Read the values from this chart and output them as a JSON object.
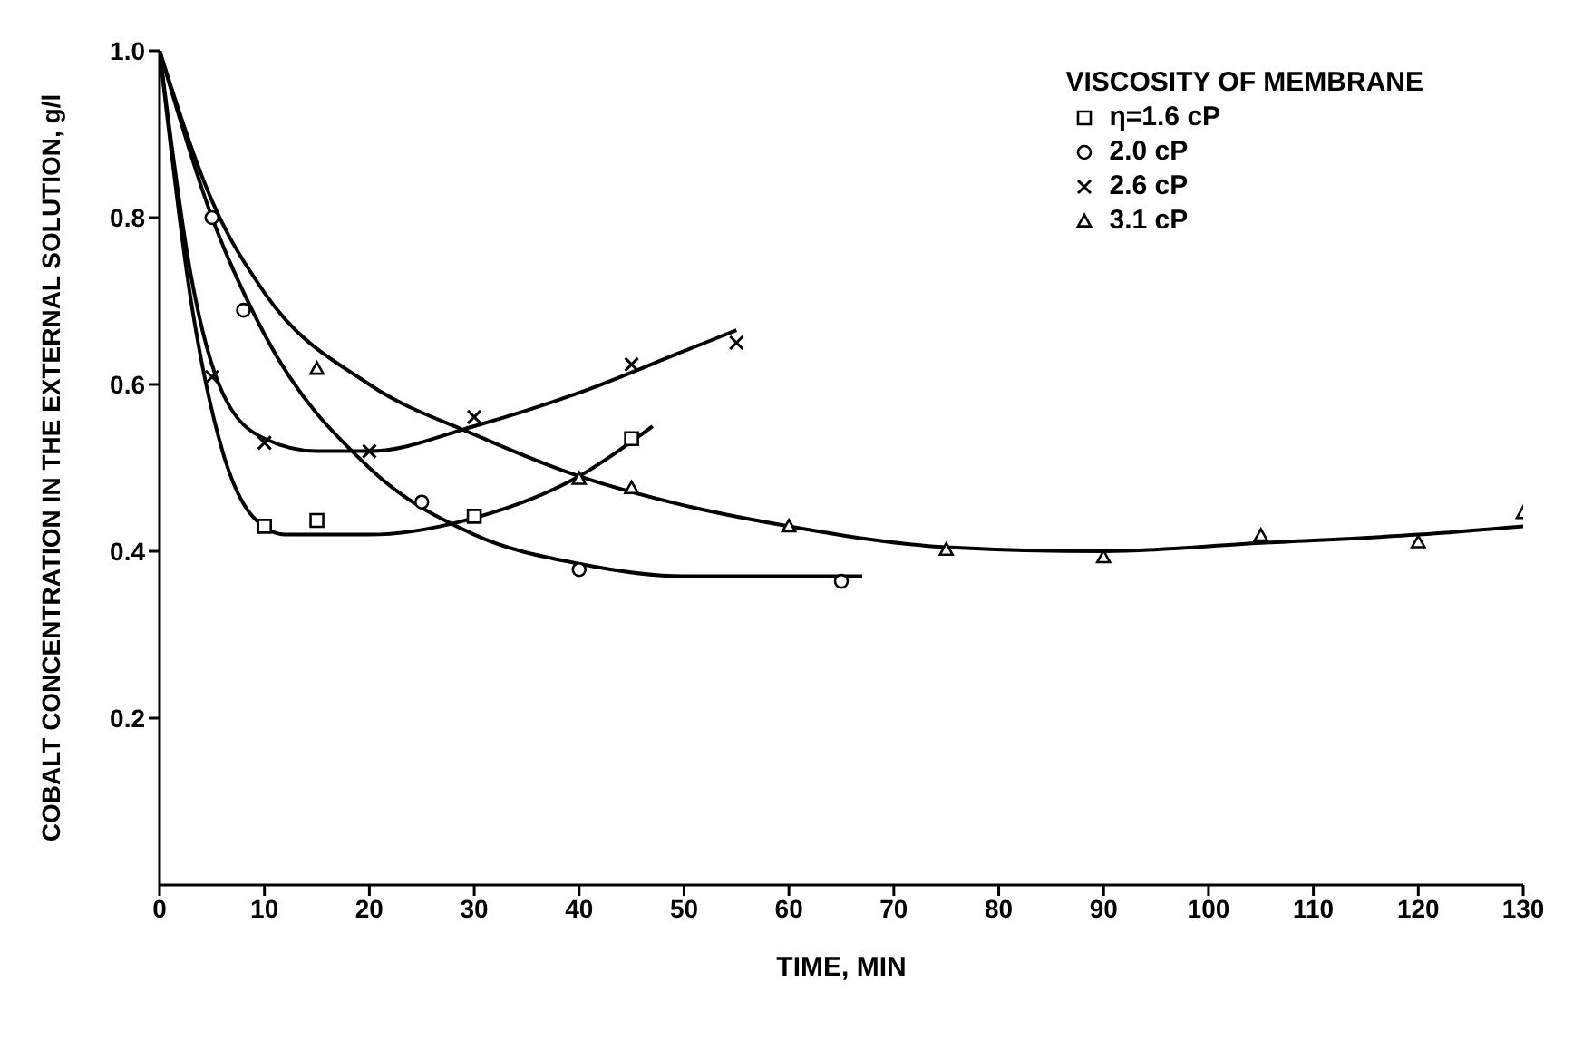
{
  "chart_data": {
    "type": "scatter",
    "xlabel": "TIME, MIN",
    "ylabel": "COBALT CONCENTRATION IN THE EXTERNAL SOLUTION, g/l",
    "legend_title": "VISCOSITY OF MEMBRANE",
    "legend": "top right",
    "xlim": [
      0,
      130
    ],
    "xticks": [
      0,
      10,
      20,
      30,
      40,
      50,
      60,
      70,
      80,
      90,
      100,
      110,
      120,
      130
    ],
    "ylim": [
      0,
      1
    ],
    "yticks": [
      {
        "value": 0.2,
        "label": "0.2"
      },
      {
        "value": 0.4,
        "label": "0.4"
      },
      {
        "value": 0.6,
        "label": "0.6"
      },
      {
        "value": 0.8,
        "label": "0.8"
      },
      {
        "value": 1,
        "label": "1.0"
      }
    ],
    "series": [
      {
        "name": "η=1.6 cP",
        "color": "#000000",
        "marker": "square",
        "x": [
          10,
          15,
          30,
          45
        ],
        "values": [
          0.43,
          0.437,
          0.442,
          0.535
        ]
      },
      {
        "name": "2.0 cP",
        "color": "#000000",
        "marker": "circle",
        "x": [
          5,
          8,
          25,
          40,
          65
        ],
        "values": [
          0.8,
          0.689,
          0.459,
          0.378,
          0.364
        ]
      },
      {
        "name": "2.6 cP",
        "color": "#000000",
        "marker": "cross",
        "x": [
          5,
          10,
          20,
          30,
          45,
          55
        ],
        "values": [
          0.609,
          0.53,
          0.52,
          0.561,
          0.624,
          0.65
        ]
      },
      {
        "name": "3.1 cP",
        "color": "#000000",
        "marker": "triangle",
        "x": [
          15,
          40,
          45,
          60,
          75,
          90,
          105,
          120,
          130
        ],
        "values": [
          0.619,
          0.487,
          0.476,
          0.43,
          0.402,
          0.393,
          0.419,
          0.411,
          0.446
        ]
      },
      {
        "type": "line",
        "color": "#000000",
        "marker": "none",
        "x": [
          0,
          3,
          6,
          9,
          12,
          20,
          30,
          40,
          47
        ],
        "values": [
          1.0,
          0.7,
          0.52,
          0.44,
          0.42,
          0.42,
          0.44,
          0.49,
          0.55
        ]
      },
      {
        "type": "line",
        "color": "#000000",
        "marker": "none",
        "x": [
          0,
          5,
          10,
          20,
          30,
          40,
          50,
          67
        ],
        "values": [
          1.0,
          0.8,
          0.66,
          0.5,
          0.42,
          0.385,
          0.37,
          0.37
        ]
      },
      {
        "type": "line",
        "color": "#000000",
        "marker": "none",
        "x": [
          0,
          3,
          6,
          10,
          15,
          20,
          30,
          40,
          50,
          55
        ],
        "values": [
          1.0,
          0.73,
          0.59,
          0.535,
          0.52,
          0.52,
          0.55,
          0.59,
          0.64,
          0.665
        ]
      },
      {
        "type": "line",
        "color": "#000000",
        "marker": "none",
        "x": [
          0,
          5,
          10,
          20,
          30,
          40,
          50,
          60,
          75,
          90,
          105,
          120,
          130
        ],
        "values": [
          1.0,
          0.82,
          0.71,
          0.6,
          0.54,
          0.49,
          0.455,
          0.43,
          0.405,
          0.4,
          0.41,
          0.42,
          0.43
        ]
      }
    ]
  }
}
